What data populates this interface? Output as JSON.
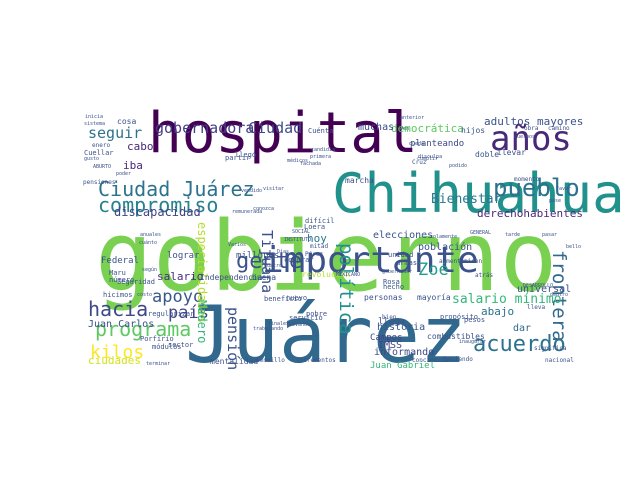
{
  "words": [
    {
      "text": "gobierno",
      "color": "#7ad151",
      "weight": 1.0,
      "vertical": false
    },
    {
      "text": "Juárez",
      "color": "#31688e",
      "weight": 0.95,
      "vertical": false
    },
    {
      "text": "hospital",
      "color": "#440154",
      "weight": 0.7,
      "vertical": false
    },
    {
      "text": "Chihuahua",
      "color": "#21918c",
      "weight": 0.62,
      "vertical": false
    },
    {
      "text": "importante",
      "color": "#3b528b",
      "weight": 0.42,
      "vertical": false
    },
    {
      "text": "años",
      "color": "#482878",
      "weight": 0.38,
      "vertical": false
    },
    {
      "text": "Ciudad Juárez",
      "color": "#2c728e",
      "weight": 0.3,
      "vertical": false
    },
    {
      "text": "pueblo",
      "color": "#2c728e",
      "weight": 0.28,
      "vertical": false
    },
    {
      "text": "programa",
      "color": "#5ec962",
      "weight": 0.24,
      "vertical": false
    },
    {
      "text": "hacia",
      "color": "#3e4989",
      "weight": 0.24,
      "vertical": false
    },
    {
      "text": "compromiso",
      "color": "#26828e",
      "weight": 0.22,
      "vertical": false
    },
    {
      "text": "gobernadora",
      "color": "#433e85",
      "weight": 0.2,
      "vertical": false
    },
    {
      "text": "gente",
      "color": "#3b528b",
      "weight": 0.2,
      "vertical": false
    },
    {
      "text": "frontera",
      "color": "#31688e",
      "weight": 0.2,
      "vertical": true
    },
    {
      "text": "política",
      "color": "#21918c",
      "weight": 0.2,
      "vertical": true
    },
    {
      "text": "acuerdo",
      "color": "#2c728e",
      "weight": 0.18,
      "vertical": false
    },
    {
      "text": "seguir",
      "color": "#2c728e",
      "weight": 0.16,
      "vertical": false
    },
    {
      "text": "Ciudad",
      "color": "#3e4989",
      "weight": 0.16,
      "vertical": false
    },
    {
      "text": "kilos",
      "color": "#fde725",
      "weight": 0.16,
      "vertical": false
    },
    {
      "text": "apoyo",
      "color": "#38588c",
      "weight": 0.16,
      "vertical": false
    },
    {
      "text": "país",
      "color": "#414487",
      "weight": 0.16,
      "vertical": false
    },
    {
      "text": "Zoé",
      "color": "#1f9e89",
      "weight": 0.16,
      "vertical": false
    },
    {
      "text": "Bienestar",
      "color": "#2a788e",
      "weight": 0.12,
      "vertical": false
    },
    {
      "text": "pensión",
      "color": "#3b528b",
      "weight": 0.12,
      "vertical": true
    },
    {
      "text": "Tijuana",
      "color": "#3b528b",
      "weight": 0.12,
      "vertical": true
    },
    {
      "text": "salario mínimo",
      "color": "#35b779",
      "weight": 0.11,
      "vertical": false
    },
    {
      "text": "adultos mayores",
      "color": "#3b528b",
      "weight": 0.09,
      "vertical": false
    },
    {
      "text": "derechohabientes",
      "color": "#482878",
      "weight": 0.09,
      "vertical": false
    },
    {
      "text": "democrática",
      "color": "#5ec962",
      "weight": 0.09,
      "vertical": false
    },
    {
      "text": "especialidades",
      "color": "#b5de2b",
      "weight": 0.1,
      "vertical": true
    },
    {
      "text": "discapacidad",
      "color": "#414487",
      "weight": 0.09,
      "vertical": false
    },
    {
      "text": "población",
      "color": "#3b528b",
      "weight": 0.08,
      "vertical": false
    },
    {
      "text": "elecciones",
      "color": "#3b528b",
      "weight": 0.08,
      "vertical": false
    },
    {
      "text": "Madero",
      "color": "#35b779",
      "weight": 0.09,
      "vertical": true
    },
    {
      "text": "Juan Carlos",
      "color": "#3b528b",
      "weight": 0.08,
      "vertical": false
    },
    {
      "text": "ciudades",
      "color": "#d2e21b",
      "weight": 0.08,
      "vertical": false
    },
    {
      "text": "salario",
      "color": "#472d7b",
      "weight": 0.08,
      "vertical": false
    },
    {
      "text": "cabo",
      "color": "#482878",
      "weight": 0.08,
      "vertical": false
    },
    {
      "text": "iba",
      "color": "#482878",
      "weight": 0.08,
      "vertical": false
    },
    {
      "text": "hoy",
      "color": "#2a788e",
      "weight": 0.08,
      "vertical": false
    },
    {
      "text": "abajo",
      "color": "#2c728e",
      "weight": 0.08,
      "vertical": false
    },
    {
      "text": "dar",
      "color": "#31688e",
      "weight": 0.07,
      "vertical": false
    },
    {
      "text": "muchas",
      "color": "#3e4989",
      "weight": 0.07,
      "vertical": false
    },
    {
      "text": "historia",
      "color": "#3b528b",
      "weight": 0.07,
      "vertical": false
    },
    {
      "text": "informando",
      "color": "#3e4989",
      "weight": 0.07,
      "vertical": false
    },
    {
      "text": "Juan Gabriel",
      "color": "#35b779",
      "weight": 0.06,
      "vertical": false
    },
    {
      "text": "universal",
      "color": "#3b528b",
      "weight": 0.07,
      "vertical": false
    },
    {
      "text": "IMSS",
      "color": "#414487",
      "weight": 0.07,
      "vertical": false
    },
    {
      "text": "Campos",
      "color": "#414487",
      "weight": 0.07,
      "vertical": false
    },
    {
      "text": "llega",
      "color": "#3b528b",
      "weight": 0.07,
      "vertical": false
    },
    {
      "text": "planteando",
      "color": "#3e4989",
      "weight": 0.06,
      "vertical": false
    },
    {
      "text": "hijos",
      "color": "#3b528b",
      "weight": 0.06,
      "vertical": false
    },
    {
      "text": "lograr",
      "color": "#3b528b",
      "weight": 0.06,
      "vertical": false
    },
    {
      "text": "Federal",
      "color": "#3b528b",
      "weight": 0.06,
      "vertical": false
    },
    {
      "text": "millones",
      "color": "#3b528b",
      "weight": 0.06,
      "vertical": false
    },
    {
      "text": "mentalidad",
      "color": "#3b528b",
      "weight": 0.05,
      "vertical": false
    },
    {
      "text": "combustibles",
      "color": "#3b528b",
      "weight": 0.05,
      "vertical": false
    },
    {
      "text": "marcha",
      "color": "#3b528b",
      "weight": 0.05,
      "vertical": false
    },
    {
      "text": "cosa",
      "color": "#3b528b",
      "weight": 0.05,
      "vertical": false
    },
    {
      "text": "llevar",
      "color": "#3b528b",
      "weight": 0.05,
      "vertical": false
    },
    {
      "text": "doble",
      "color": "#3b528b",
      "weight": 0.05,
      "vertical": false
    },
    {
      "text": "Independencia",
      "color": "#3b528b",
      "weight": 0.05,
      "vertical": false
    },
    {
      "text": "buena",
      "color": "#3b528b",
      "weight": 0.05,
      "vertical": false
    },
    {
      "text": "revolución",
      "color": "#b5de2b",
      "weight": 0.05,
      "vertical": false
    },
    {
      "text": "mayoría",
      "color": "#3b528b",
      "weight": 0.05,
      "vertical": false
    },
    {
      "text": "personas",
      "color": "#3b528b",
      "weight": 0.05,
      "vertical": false
    },
    {
      "text": "Rosa",
      "color": "#3b528b",
      "weight": 0.05,
      "vertical": false
    },
    {
      "text": "armas",
      "color": "#3b528b",
      "weight": 0.05,
      "vertical": false
    },
    {
      "text": "unidad",
      "color": "#3b528b",
      "weight": 0.05,
      "vertical": false
    },
    {
      "text": "hecho",
      "color": "#3b528b",
      "weight": 0.05,
      "vertical": false
    },
    {
      "text": "pesos",
      "color": "#3b528b",
      "weight": 0.05,
      "vertical": false
    },
    {
      "text": "propósito",
      "color": "#3b528b",
      "weight": 0.05,
      "vertical": false
    },
    {
      "text": "Seguridad",
      "color": "#3b528b",
      "weight": 0.04,
      "vertical": false
    },
    {
      "text": "Loera",
      "color": "#3b528b",
      "weight": 0.04,
      "vertical": false
    },
    {
      "text": "pobre",
      "color": "#3b528b",
      "weight": 0.04,
      "vertical": false
    },
    {
      "text": "difícil",
      "color": "#3b528b",
      "weight": 0.04,
      "vertical": false
    },
    {
      "text": "Maru",
      "color": "#3b528b",
      "weight": 0.04,
      "vertical": false
    },
    {
      "text": "número",
      "color": "#3b528b",
      "weight": 0.04,
      "vertical": false
    },
    {
      "text": "sector",
      "color": "#3b528b",
      "weight": 0.04,
      "vertical": false
    },
    {
      "text": "módulos",
      "color": "#3b528b",
      "weight": 0.04,
      "vertical": false
    },
    {
      "text": "hicimos",
      "color": "#3b528b",
      "weight": 0.04,
      "vertical": false
    },
    {
      "text": "Porfirio",
      "color": "#3b528b",
      "weight": 0.04,
      "vertical": false
    },
    {
      "text": "regularizar",
      "color": "#3b528b",
      "weight": 0.04,
      "vertical": false
    },
    {
      "text": "Cuellar",
      "color": "#3b528b",
      "weight": 0.04,
      "vertical": false
    },
    {
      "text": "enero",
      "color": "#3b528b",
      "weight": 0.04,
      "vertical": false
    },
    {
      "text": "pensiones",
      "color": "#3b528b",
      "weight": 0.04,
      "vertical": false
    },
    {
      "text": "llegó",
      "color": "#3b528b",
      "weight": 0.04,
      "vertical": false
    },
    {
      "text": "partir",
      "color": "#3b528b",
      "weight": 0.04,
      "vertical": false
    },
    {
      "text": "Cuénta",
      "color": "#3b528b",
      "weight": 0.04,
      "vertical": false
    },
    {
      "text": "comprar",
      "color": "#3b528b",
      "weight": 0.04,
      "vertical": false
    },
    {
      "text": "beneficio",
      "color": "#3b528b",
      "weight": 0.04,
      "vertical": false
    },
    {
      "text": "nuevo",
      "color": "#3b528b",
      "weight": 0.04,
      "vertical": false
    },
    {
      "text": "servicio",
      "color": "#3b528b",
      "weight": 0.04,
      "vertical": false
    },
    {
      "text": "bien",
      "color": "#3b528b",
      "weight": 0.04,
      "vertical": false
    },
    {
      "text": "Cruz",
      "color": "#3b528b",
      "weight": 0.04,
      "vertical": false
    },
    {
      "text": "mitad",
      "color": "#3b528b",
      "weight": 0.04,
      "vertical": false
    },
    {
      "text": "Pérez",
      "color": "#3b528b",
      "weight": 0.04,
      "vertical": false
    },
    {
      "text": "aumento",
      "color": "#3b528b",
      "weight": 0.04,
      "vertical": false
    },
    {
      "text": "miren",
      "color": "#3b528b",
      "weight": 0.04,
      "vertical": false
    },
    {
      "text": "atrás",
      "color": "#3b528b",
      "weight": 0.04,
      "vertical": false
    },
    {
      "text": "lleva",
      "color": "#3b528b",
      "weight": 0.04,
      "vertical": false
    },
    {
      "text": "haciendo",
      "color": "#3b528b",
      "weight": 0.04,
      "vertical": false
    },
    {
      "text": "incrementos",
      "color": "#3b528b",
      "weight": 0.03,
      "vertical": false
    },
    {
      "text": "terminar",
      "color": "#3b528b",
      "weight": 0.03,
      "vertical": false
    },
    {
      "text": "conciencia",
      "color": "#3b528b",
      "weight": 0.03,
      "vertical": false
    },
    {
      "text": "sencillo",
      "color": "#3b528b",
      "weight": 0.03,
      "vertical": false
    },
    {
      "text": "nacional",
      "color": "#3b528b",
      "weight": 0.03,
      "vertical": false
    },
    {
      "text": "significa",
      "color": "#3b528b",
      "weight": 0.03,
      "vertical": false
    },
    {
      "text": "camino",
      "color": "#3b528b",
      "weight": 0.03,
      "vertical": false
    },
    {
      "text": "obra",
      "color": "#3b528b",
      "weight": 0.03,
      "vertical": false
    },
    {
      "text": "momento",
      "color": "#3b528b",
      "weight": 0.03,
      "vertical": false
    },
    {
      "text": "podido",
      "color": "#3b528b",
      "weight": 0.03,
      "vertical": false
    },
    {
      "text": "cumplir",
      "color": "#3b528b",
      "weight": 0.03,
      "vertical": false
    },
    {
      "text": "queda",
      "color": "#3b528b",
      "weight": 0.03,
      "vertical": false
    },
    {
      "text": "primera",
      "color": "#3b528b",
      "weight": 0.03,
      "vertical": false
    },
    {
      "text": "candidia",
      "color": "#3b528b",
      "weight": 0.03,
      "vertical": false
    },
    {
      "text": "fachada",
      "color": "#3b528b",
      "weight": 0.03,
      "vertical": false
    },
    {
      "text": "disculpa",
      "color": "#3b528b",
      "weight": 0.03,
      "vertical": false
    },
    {
      "text": "cuatro",
      "color": "#3b528b",
      "weight": 0.03,
      "vertical": false
    },
    {
      "text": "gusto",
      "color": "#3b528b",
      "weight": 0.03,
      "vertical": false
    },
    {
      "text": "poder",
      "color": "#3b528b",
      "weight": 0.03,
      "vertical": false
    },
    {
      "text": "ABURTO",
      "color": "#3b528b",
      "weight": 0.03,
      "vertical": false
    },
    {
      "text": "cuánto",
      "color": "#3b528b",
      "weight": 0.03,
      "vertical": false
    },
    {
      "text": "anuales",
      "color": "#3b528b",
      "weight": 0.03,
      "vertical": false
    },
    {
      "text": "según",
      "color": "#3b528b",
      "weight": 0.03,
      "vertical": false
    },
    {
      "text": "costo",
      "color": "#3b528b",
      "weight": 0.03,
      "vertical": false
    },
    {
      "text": "DESARROLLO",
      "color": "#3b528b",
      "weight": 0.03,
      "vertical": false
    },
    {
      "text": "MEXICANO",
      "color": "#3b528b",
      "weight": 0.03,
      "vertical": false
    },
    {
      "text": "GENERAL",
      "color": "#3b528b",
      "weight": 0.03,
      "vertical": false
    },
    {
      "text": "INSTITUTO",
      "color": "#3b528b",
      "weight": 0.03,
      "vertical": false
    },
    {
      "text": "SOCIAL",
      "color": "#3b528b",
      "weight": 0.03,
      "vertical": false
    },
    {
      "text": "inicia",
      "color": "#3b528b",
      "weight": 0.03,
      "vertical": false
    },
    {
      "text": "anterior",
      "color": "#3b528b",
      "weight": 0.03,
      "vertical": false
    },
    {
      "text": "cuerpos",
      "color": "#3b528b",
      "weight": 0.03,
      "vertical": false
    },
    {
      "text": "tarde",
      "color": "#3b528b",
      "weight": 0.03,
      "vertical": false
    },
    {
      "text": "pasar",
      "color": "#3b528b",
      "weight": 0.03,
      "vertical": false
    },
    {
      "text": "Días",
      "color": "#3b528b",
      "weight": 0.03,
      "vertical": false
    },
    {
      "text": "gobernador",
      "color": "#3b528b",
      "weight": 0.03,
      "vertical": false
    },
    {
      "text": "trabajando",
      "color": "#3b528b",
      "weight": 0.03,
      "vertical": false
    },
    {
      "text": "llevando",
      "color": "#3b528b",
      "weight": 0.03,
      "vertical": false
    },
    {
      "text": "inaugurar",
      "color": "#3b528b",
      "weight": 0.03,
      "vertical": false
    },
    {
      "text": "dentro",
      "color": "#3b528b",
      "weight": 0.03,
      "vertical": false
    },
    {
      "text": "sistema",
      "color": "#3b528b",
      "weight": 0.03,
      "vertical": false
    },
    {
      "text": "vendido",
      "color": "#3b528b",
      "weight": 0.03,
      "vertical": false
    },
    {
      "text": "médicos",
      "color": "#3b528b",
      "weight": 0.03,
      "vertical": false
    },
    {
      "text": "Ven",
      "color": "#3b528b",
      "weight": 0.03,
      "vertical": false
    },
    {
      "text": "solamente",
      "color": "#3b528b",
      "weight": 0.03,
      "vertical": false
    },
    {
      "text": "visitar",
      "color": "#3b528b",
      "weight": 0.03,
      "vertical": false
    },
    {
      "text": "conozca",
      "color": "#3b528b",
      "weight": 0.03,
      "vertical": false
    },
    {
      "text": "remunerada",
      "color": "#3b528b",
      "weight": 0.03,
      "vertical": false
    },
    {
      "text": "bello",
      "color": "#3b528b",
      "weight": 0.03,
      "vertical": false
    },
    {
      "text": "Varios",
      "color": "#3b528b",
      "weight": 0.03,
      "vertical": false
    },
    {
      "text": "finales",
      "color": "#3b528b",
      "weight": 0.03,
      "vertical": false
    },
    {
      "text": "pase",
      "color": "#3b528b",
      "weight": 0.03,
      "vertical": false
    },
    {
      "text": "favor",
      "color": "#3b528b",
      "weight": 0.03,
      "vertical": false
    }
  ]
}
